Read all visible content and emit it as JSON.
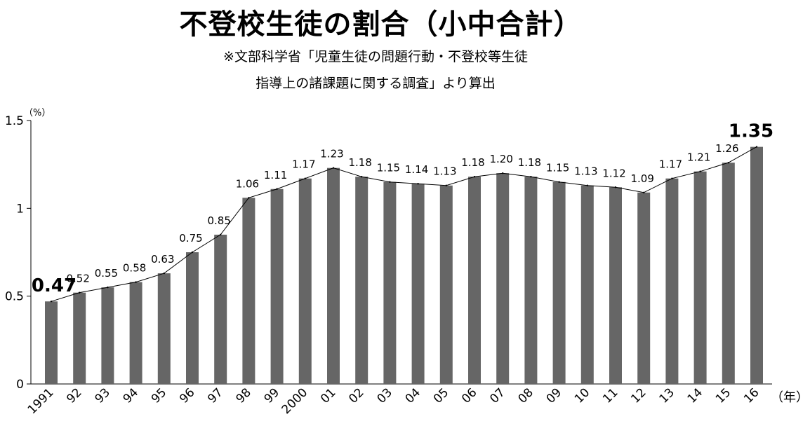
{
  "title": "不登校生徒の割合（小中合計）",
  "source_note": {
    "line1": "※文部科学省「児童生徒の問題行動・不登校等生徒",
    "line2": "指導上の諸課題に関する調査」より算出"
  },
  "colors": {
    "bar": "#666666",
    "line": "#000000",
    "axis": "#000000"
  },
  "chart_data": {
    "type": "bar",
    "title": "不登校生徒の割合（小中合計）",
    "ylabel": "（%）",
    "xlabel": "（年）",
    "ylim": [
      0,
      1.5
    ],
    "yticks": [
      {
        "value": 0,
        "label": "0"
      },
      {
        "value": 0.5,
        "label": "0.5"
      },
      {
        "value": 1,
        "label": "1"
      },
      {
        "value": 1.5,
        "label": "1.5"
      }
    ],
    "categories": [
      "1991",
      "92",
      "93",
      "94",
      "95",
      "96",
      "97",
      "98",
      "99",
      "2000",
      "01",
      "02",
      "03",
      "04",
      "05",
      "06",
      "07",
      "08",
      "09",
      "10",
      "11",
      "12",
      "13",
      "14",
      "15",
      "16"
    ],
    "values": [
      0.47,
      0.52,
      0.55,
      0.58,
      0.63,
      0.75,
      0.85,
      1.06,
      1.11,
      1.17,
      1.23,
      1.18,
      1.15,
      1.14,
      1.13,
      1.18,
      1.2,
      1.18,
      1.15,
      1.13,
      1.12,
      1.09,
      1.17,
      1.21,
      1.26,
      1.35
    ],
    "data_labels": [
      "0.47",
      "0.52",
      "0.55",
      "0.58",
      "0.63",
      "0.75",
      "0.85",
      "1.06",
      "1.11",
      "1.17",
      "1.23",
      "1.18",
      "1.15",
      "1.14",
      "1.13",
      "1.18",
      "1.20",
      "1.18",
      "1.15",
      "1.13",
      "1.12",
      "1.09",
      "1.17",
      "1.21",
      "1.26",
      "1.35"
    ],
    "highlight_labels": [
      0,
      25
    ],
    "overlay_line": true,
    "grid": false,
    "legend": "none"
  }
}
